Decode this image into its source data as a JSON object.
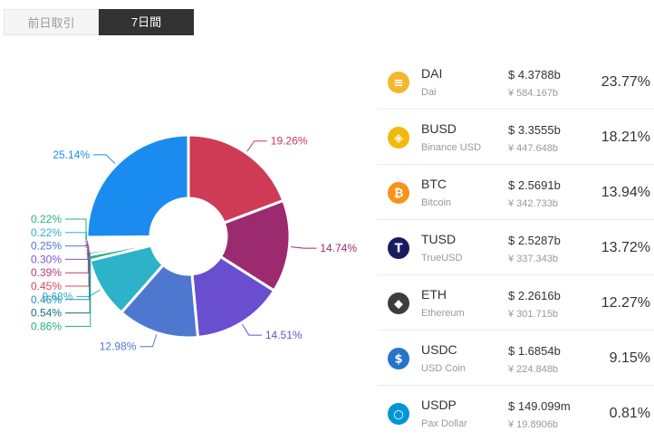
{
  "tabs": {
    "previous_day": "前日取引",
    "seven_days": "7日間",
    "active": "seven_days"
  },
  "coins": [
    {
      "symbol": "DAI",
      "name": "Dai",
      "usd": "$ 4.3788b",
      "cny": "¥ 584.167b",
      "pct": "23.77%",
      "icon": "dai-icon",
      "icon_color": "#F4B731"
    },
    {
      "symbol": "BUSD",
      "name": "Binance USD",
      "usd": "$ 3.3555b",
      "cny": "¥ 447.648b",
      "pct": "18.21%",
      "icon": "busd-icon",
      "icon_color": "#F0B90B"
    },
    {
      "symbol": "BTC",
      "name": "Bitcoin",
      "usd": "$ 2.5691b",
      "cny": "¥ 342.733b",
      "pct": "13.94%",
      "icon": "btc-icon",
      "icon_color": "#F7931A"
    },
    {
      "symbol": "TUSD",
      "name": "TrueUSD",
      "usd": "$ 2.5287b",
      "cny": "¥ 337.343b",
      "pct": "13.72%",
      "icon": "tusd-icon",
      "icon_color": "#1A1A5E"
    },
    {
      "symbol": "ETH",
      "name": "Ethereum",
      "usd": "$ 2.2616b",
      "cny": "¥ 301.715b",
      "pct": "12.27%",
      "icon": "eth-icon",
      "icon_color": "#3C3C3D"
    },
    {
      "symbol": "USDC",
      "name": "USD Coin",
      "usd": "$ 1.6854b",
      "cny": "¥ 224.848b",
      "pct": "9.15%",
      "icon": "usdc-icon",
      "icon_color": "#2775CA"
    },
    {
      "symbol": "USDP",
      "name": "Pax Dollar",
      "usd": "$ 149.099m",
      "cny": "¥ 19.8906b",
      "pct": "0.81%",
      "icon": "usdp-icon",
      "icon_color": "#0096D6"
    }
  ],
  "chart_data": {
    "type": "pie",
    "variant": "donut",
    "start": "top, clockwise",
    "slices": [
      {
        "label": "19.26%",
        "value": 19.26,
        "color": "#CF3A54"
      },
      {
        "label": "14.74%",
        "value": 14.74,
        "color": "#9B2A6E"
      },
      {
        "label": "14.51%",
        "value": 14.51,
        "color": "#6A4ED0"
      },
      {
        "label": "12.98%",
        "value": 12.98,
        "color": "#4E78CF"
      },
      {
        "label": "9.68%",
        "value": 9.68,
        "color": "#2DB2C9"
      },
      {
        "label": "0.86%",
        "value": 0.86,
        "color": "#27AE84"
      },
      {
        "label": "0.54%",
        "value": 0.54,
        "color": "#1C6E7E"
      },
      {
        "label": "0.46%",
        "value": 0.46,
        "color": "#2B8FCF"
      },
      {
        "label": "0.45%",
        "value": 0.45,
        "color": "#D84560"
      },
      {
        "label": "0.39%",
        "value": 0.39,
        "color": "#C0357A"
      },
      {
        "label": "0.30%",
        "value": 0.3,
        "color": "#7B58D0"
      },
      {
        "label": "0.25%",
        "value": 0.25,
        "color": "#4E78CF"
      },
      {
        "label": "0.22%",
        "value": 0.22,
        "color": "#2DB2C9"
      },
      {
        "label": "0.22%",
        "value": 0.22,
        "color": "#27AE84"
      },
      {
        "label": "25.14%",
        "value": 25.14,
        "color": "#1A8CF0"
      }
    ]
  }
}
